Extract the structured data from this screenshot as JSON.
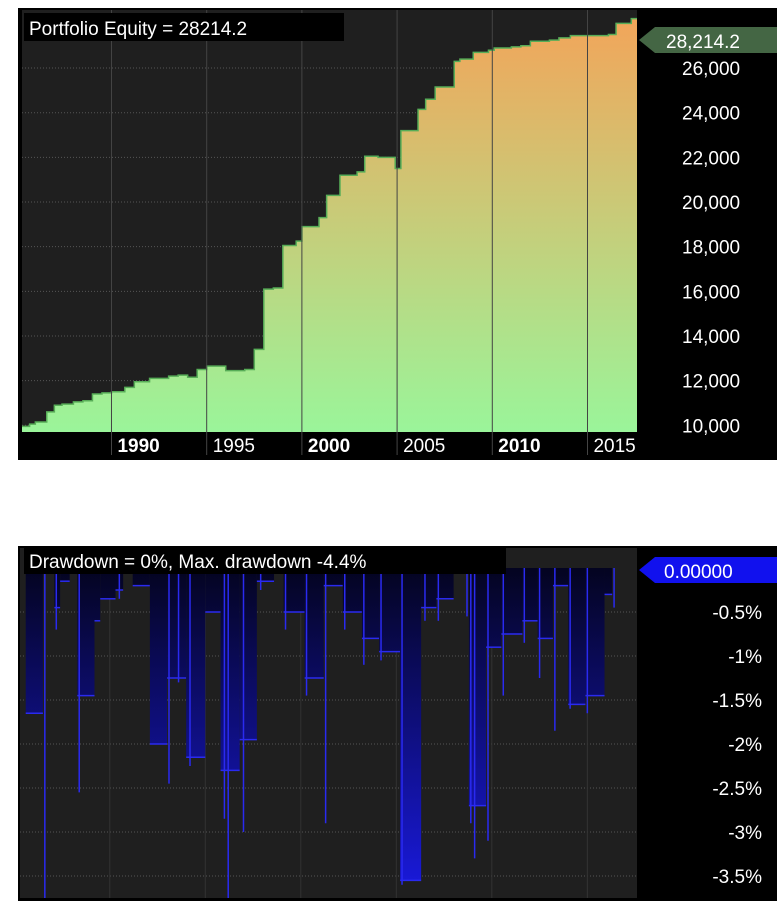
{
  "chart_data": [
    {
      "type": "area",
      "title": "Portfolio Equity = 28214.2",
      "last_value_label": "28,214.2",
      "ylim": [
        9700,
        28600
      ],
      "y_ticks": [
        10000,
        12000,
        14000,
        16000,
        18000,
        20000,
        22000,
        24000,
        26000
      ],
      "y_tick_labels": [
        "10,000",
        "12,000",
        "14,000",
        "16,000",
        "18,000",
        "20,000",
        "22,000",
        "24,000",
        "26,000"
      ],
      "x_ticks": [
        {
          "x": 1990,
          "label": "1990",
          "bold": true
        },
        {
          "x": 1995,
          "label": "1995",
          "bold": false
        },
        {
          "x": 2000,
          "label": "2000",
          "bold": true
        },
        {
          "x": 2005,
          "label": "2005",
          "bold": false
        },
        {
          "x": 2010,
          "label": "2010",
          "bold": true
        },
        {
          "x": 2015,
          "label": "2015",
          "bold": false
        }
      ],
      "xlim": [
        1985.3,
        2017.6
      ],
      "grid": true,
      "colors": {
        "fill_top": "#f2a55a",
        "fill_bottom": "#9af59a",
        "line": "#57ad57",
        "background": "#1f1f1f",
        "tag": "#446644"
      },
      "x": [
        1985.3,
        1985.7,
        1986.0,
        1986.6,
        1987.0,
        1987.4,
        1987.6,
        1988.0,
        1988.5,
        1989.0,
        1989.5,
        1990.0,
        1990.7,
        1991.2,
        1992.0,
        1993.0,
        1993.5,
        1994.0,
        1994.5,
        1995.0,
        1996.0,
        1997.0,
        1997.5,
        1998.0,
        1998.5,
        1999.0,
        1999.7,
        2000.0,
        2000.9,
        2001.3,
        2002.0,
        2002.9,
        2003.3,
        2004.0,
        2004.9,
        2005.2,
        2006.1,
        2006.5,
        2007.0,
        2008.0,
        2008.3,
        2009.0,
        2009.8,
        2010.1,
        2011.0,
        2011.5,
        2012.0,
        2013.0,
        2013.5,
        2014.1,
        2015.0,
        2016.1,
        2016.5,
        2017.3,
        2017.6
      ],
      "y": [
        9950,
        10050,
        10150,
        10600,
        10900,
        10950,
        10950,
        11050,
        11100,
        11400,
        11450,
        11500,
        11700,
        11950,
        12100,
        12200,
        12250,
        12150,
        12500,
        12650,
        12450,
        12500,
        13400,
        16100,
        16150,
        18050,
        18250,
        18900,
        19300,
        20300,
        21200,
        21350,
        22050,
        22000,
        21500,
        23200,
        24150,
        24600,
        25150,
        26300,
        26400,
        26700,
        26800,
        26900,
        26950,
        27000,
        27200,
        27250,
        27350,
        27450,
        27450,
        27500,
        28000,
        28214.2,
        28214.2
      ]
    },
    {
      "type": "bar",
      "title": "Drawdown = 0%, Max. drawdown -4.4%",
      "last_value_label": "0.00000",
      "ylim": [
        -3.75,
        0
      ],
      "y_ticks": [
        -0.5,
        -1,
        -1.5,
        -2,
        -2.5,
        -3,
        -3.5
      ],
      "y_tick_labels": [
        "-0.5%",
        "-1%",
        "-1.5%",
        "-2%",
        "-2.5%",
        "-3%",
        "-3.5%"
      ],
      "x_ticks": [
        {
          "x": 1990
        },
        {
          "x": 1995
        },
        {
          "x": 2000
        },
        {
          "x": 2005
        },
        {
          "x": 2010
        },
        {
          "x": 2015
        }
      ],
      "xlim": [
        1985.3,
        2017.6
      ],
      "grid": true,
      "colors": {
        "bar_top": "#040420",
        "bar_bottom": "#1a1ae0",
        "spike": "#2a2af0",
        "background": "#1f1f1f",
        "tag": "#1111ee"
      },
      "segments": [
        {
          "x0": 1985.3,
          "x1": 1985.6,
          "v": 0
        },
        {
          "x0": 1985.6,
          "x1": 1986.5,
          "v": -1.65
        },
        {
          "x0": 1986.5,
          "x1": 1987.1,
          "v": 0
        },
        {
          "x0": 1987.1,
          "x1": 1987.4,
          "v": -0.45
        },
        {
          "x0": 1987.4,
          "x1": 1987.9,
          "v": -0.15
        },
        {
          "x0": 1987.9,
          "x1": 1988.3,
          "v": 0
        },
        {
          "x0": 1988.3,
          "x1": 1989.2,
          "v": -1.45
        },
        {
          "x0": 1989.2,
          "x1": 1989.5,
          "v": -0.6
        },
        {
          "x0": 1989.5,
          "x1": 1990.3,
          "v": -0.35
        },
        {
          "x0": 1990.3,
          "x1": 1990.7,
          "v": -0.25
        },
        {
          "x0": 1990.7,
          "x1": 1991.2,
          "v": 0
        },
        {
          "x0": 1991.2,
          "x1": 1992.1,
          "v": -0.2
        },
        {
          "x0": 1992.1,
          "x1": 1993.0,
          "v": -2.0
        },
        {
          "x0": 1993.0,
          "x1": 1994.0,
          "v": -1.25
        },
        {
          "x0": 1994.0,
          "x1": 1995.0,
          "v": -2.15
        },
        {
          "x0": 1995.0,
          "x1": 1995.8,
          "v": -0.5
        },
        {
          "x0": 1995.8,
          "x1": 1996.8,
          "v": -2.3
        },
        {
          "x0": 1996.8,
          "x1": 1997.7,
          "v": -1.95
        },
        {
          "x0": 1997.7,
          "x1": 1998.6,
          "v": -0.15
        },
        {
          "x0": 1998.6,
          "x1": 1999.1,
          "v": 0
        },
        {
          "x0": 1999.1,
          "x1": 2000.2,
          "v": -0.5
        },
        {
          "x0": 2000.2,
          "x1": 2001.2,
          "v": -1.25
        },
        {
          "x0": 2001.2,
          "x1": 2002.2,
          "v": -0.2
        },
        {
          "x0": 2002.2,
          "x1": 2003.2,
          "v": -0.5
        },
        {
          "x0": 2003.2,
          "x1": 2004.1,
          "v": -0.8
        },
        {
          "x0": 2004.1,
          "x1": 2005.2,
          "v": -0.95
        },
        {
          "x0": 2005.2,
          "x1": 2006.3,
          "v": -3.55
        },
        {
          "x0": 2006.3,
          "x1": 2007.1,
          "v": -0.45
        },
        {
          "x0": 2007.1,
          "x1": 2008.0,
          "v": -0.35
        },
        {
          "x0": 2008.0,
          "x1": 2008.8,
          "v": 0
        },
        {
          "x0": 2008.8,
          "x1": 2009.7,
          "v": -2.7
        },
        {
          "x0": 2009.7,
          "x1": 2010.5,
          "v": -0.9
        },
        {
          "x0": 2010.5,
          "x1": 2011.6,
          "v": -0.75
        },
        {
          "x0": 2011.6,
          "x1": 2012.4,
          "v": -0.6
        },
        {
          "x0": 2012.4,
          "x1": 2013.2,
          "v": -0.8
        },
        {
          "x0": 2013.2,
          "x1": 2014.0,
          "v": -0.2
        },
        {
          "x0": 2014.0,
          "x1": 2014.9,
          "v": -1.55
        },
        {
          "x0": 2014.9,
          "x1": 2015.9,
          "v": -1.45
        },
        {
          "x0": 2015.9,
          "x1": 2016.3,
          "v": -0.3
        },
        {
          "x0": 2016.3,
          "x1": 2017.6,
          "v": 0
        }
      ],
      "spikes": [
        {
          "x": 1986.6,
          "v": -3.75
        },
        {
          "x": 1987.2,
          "v": -0.7
        },
        {
          "x": 1988.4,
          "v": -2.55
        },
        {
          "x": 1990.5,
          "v": -0.35
        },
        {
          "x": 1993.1,
          "v": -2.45
        },
        {
          "x": 1993.6,
          "v": -1.3
        },
        {
          "x": 1994.2,
          "v": -2.25
        },
        {
          "x": 1996.0,
          "v": -2.85
        },
        {
          "x": 1996.2,
          "v": -3.75
        },
        {
          "x": 1997.0,
          "v": -3.0
        },
        {
          "x": 1997.9,
          "v": -0.25
        },
        {
          "x": 1999.2,
          "v": -0.7
        },
        {
          "x": 2000.3,
          "v": -1.45
        },
        {
          "x": 2001.3,
          "v": -2.9
        },
        {
          "x": 2002.3,
          "v": -0.7
        },
        {
          "x": 2003.3,
          "v": -1.1
        },
        {
          "x": 2004.2,
          "v": -1.05
        },
        {
          "x": 2005.3,
          "v": -3.6
        },
        {
          "x": 2006.5,
          "v": -0.6
        },
        {
          "x": 2007.2,
          "v": -0.6
        },
        {
          "x": 2008.7,
          "v": -0.55
        },
        {
          "x": 2008.9,
          "v": -2.9
        },
        {
          "x": 2009.1,
          "v": -3.3
        },
        {
          "x": 2009.8,
          "v": -3.1
        },
        {
          "x": 2010.6,
          "v": -1.45
        },
        {
          "x": 2011.7,
          "v": -0.85
        },
        {
          "x": 2012.5,
          "v": -1.25
        },
        {
          "x": 2013.3,
          "v": -1.85
        },
        {
          "x": 2014.1,
          "v": -1.6
        },
        {
          "x": 2015.0,
          "v": -1.65
        },
        {
          "x": 2016.4,
          "v": -0.45
        }
      ]
    }
  ]
}
